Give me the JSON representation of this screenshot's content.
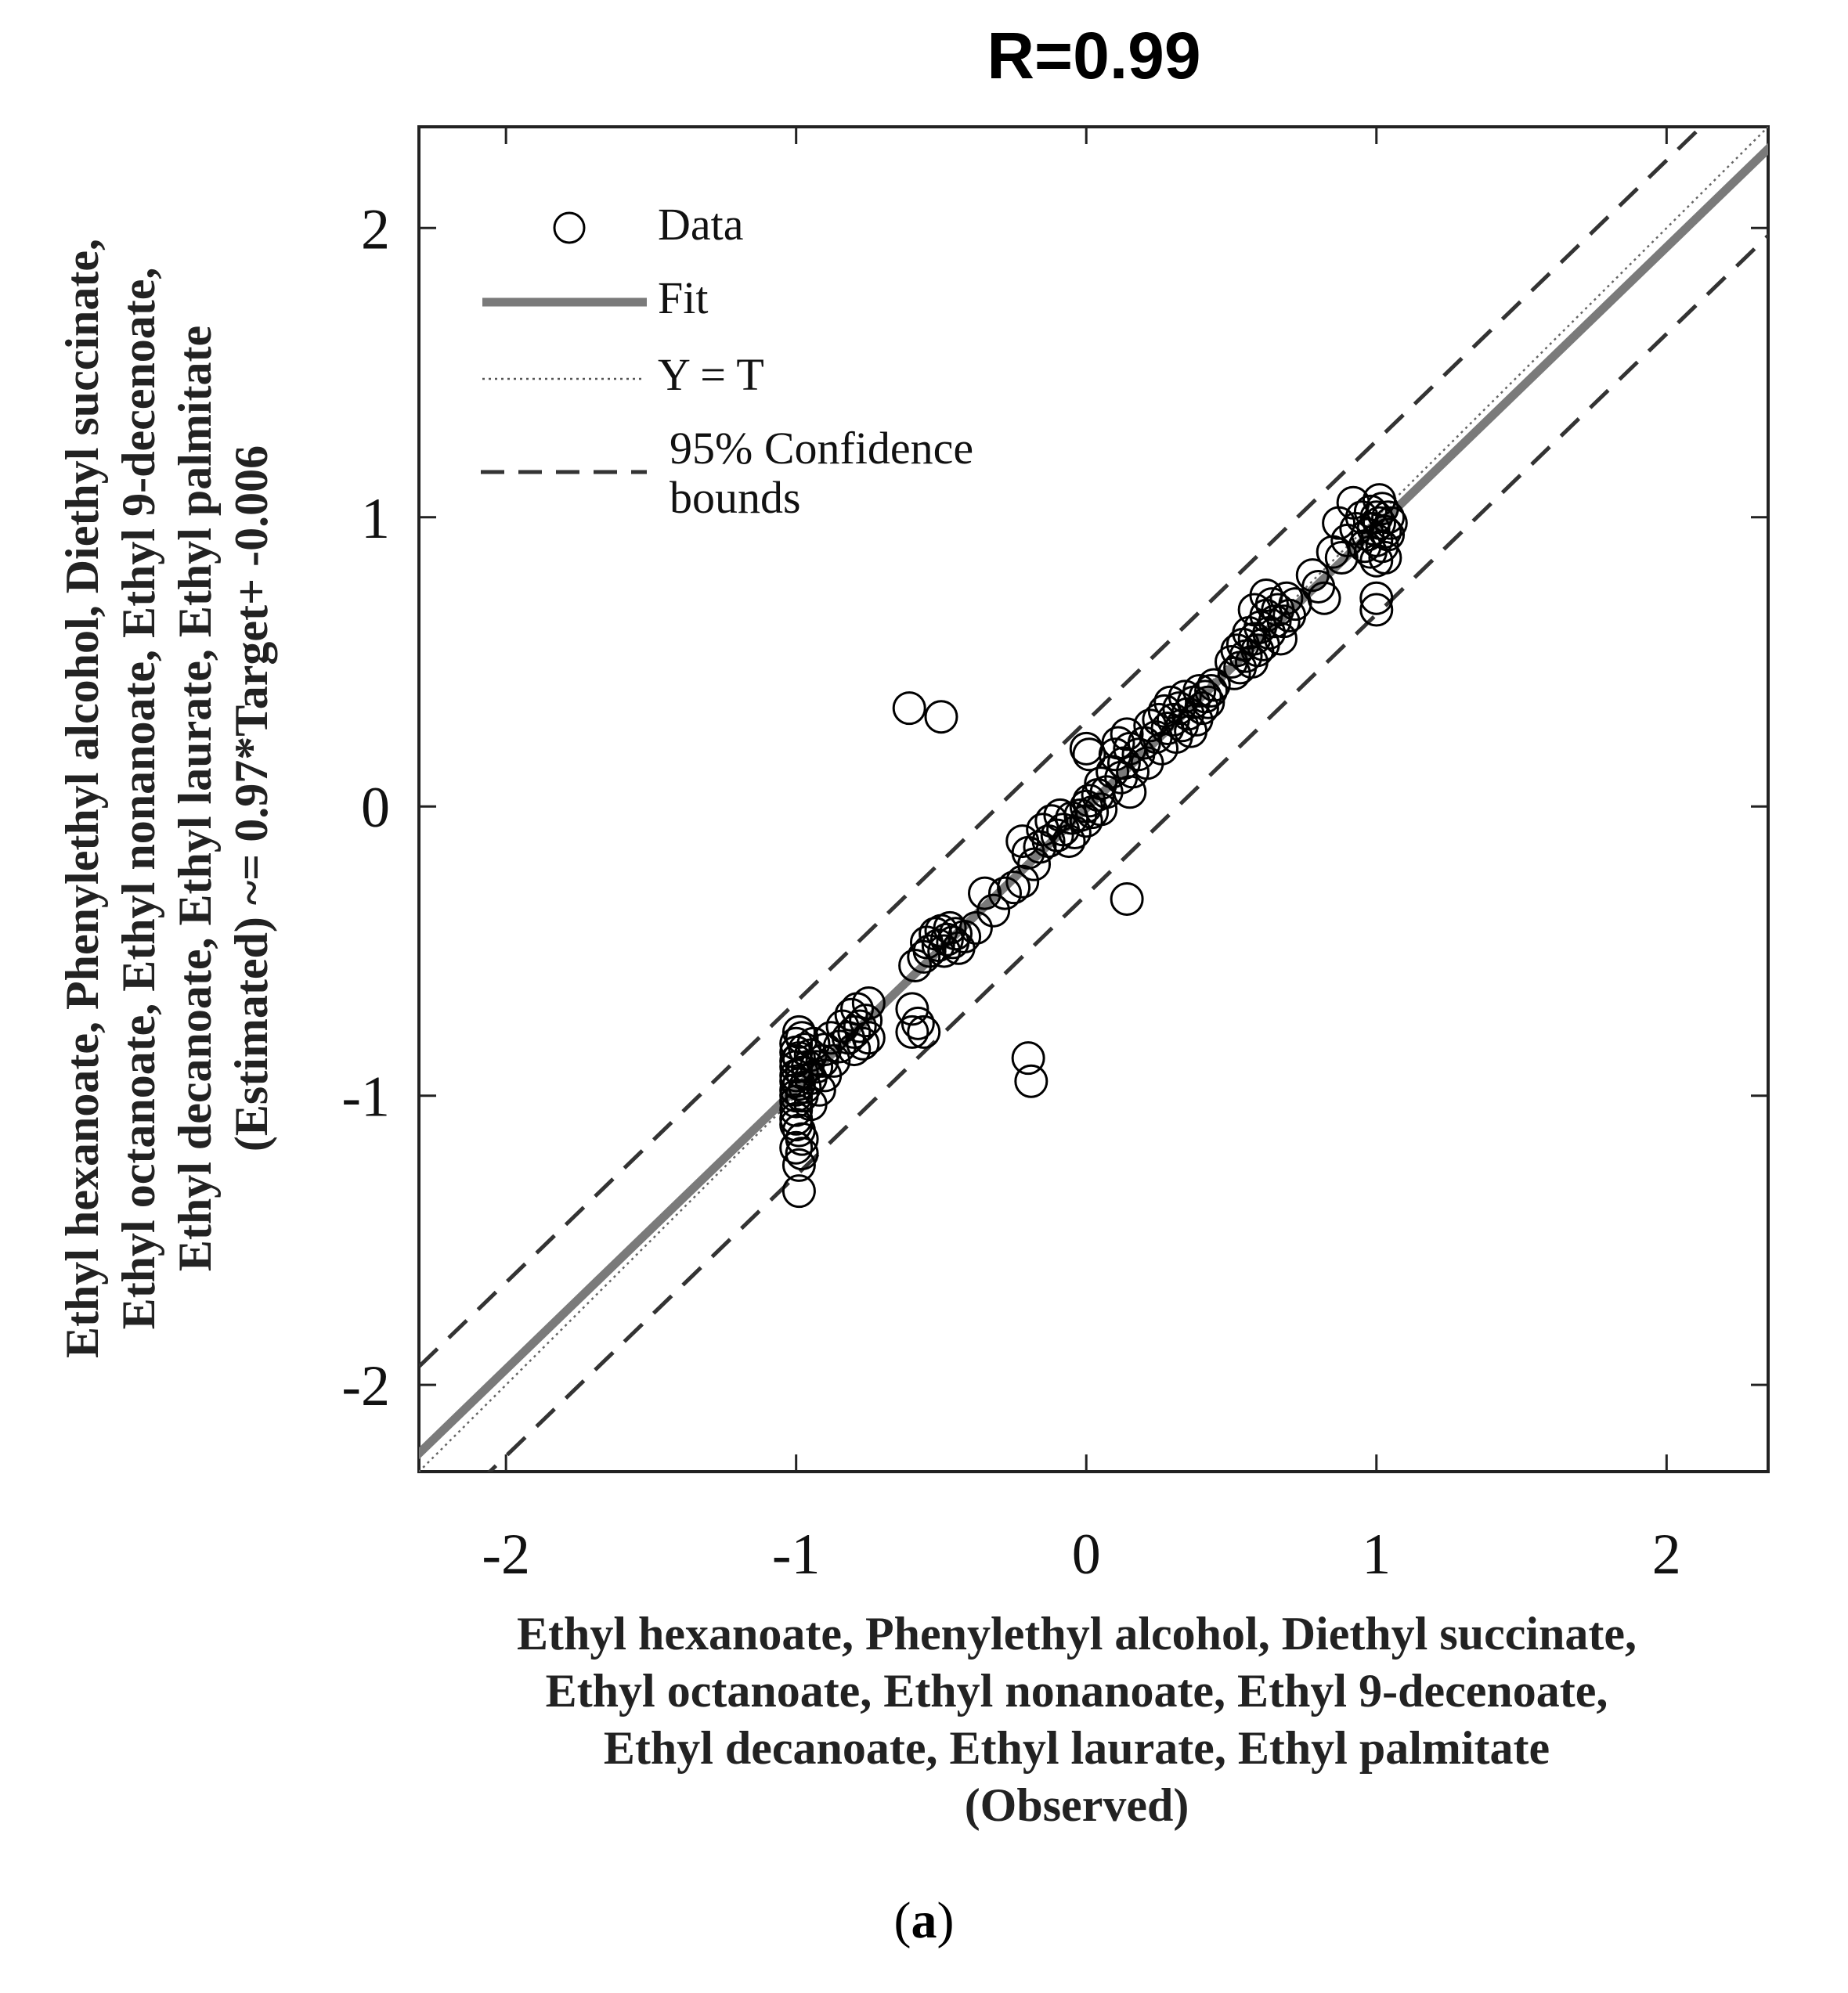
{
  "chart_data": {
    "type": "scatter",
    "title": "R=0.99",
    "xlabel_lines": [
      "Ethyl hexanoate, Phenylethyl alcohol, Diethyl succinate,",
      "Ethyl octanoate, Ethyl nonanoate, Ethyl 9-decenoate,",
      "Ethyl decanoate, Ethyl laurate, Ethyl palmitate",
      "(Observed)"
    ],
    "ylabel_lines": [
      "Ethyl hexanoate, Phenylethyl alcohol, Diethyl succinate,",
      "Ethyl octanoate, Ethyl nonanoate, Ethyl 9-decenoate,",
      "Ethyl decanoate, Ethyl laurate, Ethyl palmitate",
      "(Estimated) ~= 0.97*Target+ -0.006"
    ],
    "xlim": [
      -2.3,
      2.35
    ],
    "ylim": [
      -2.3,
      2.35
    ],
    "xticks": [
      -2,
      -1,
      0,
      1,
      2
    ],
    "yticks": [
      -2,
      -1,
      0,
      1,
      2
    ],
    "xtick_labels": [
      "-2",
      "-1",
      "0",
      "1",
      "2"
    ],
    "ytick_labels": [
      "-2",
      "-1",
      "0",
      "1",
      "2"
    ],
    "fit": {
      "slope": 0.97,
      "intercept": -0.006
    },
    "confidence_offset": 0.3,
    "legend": {
      "placement": "top-left",
      "entries": [
        {
          "label": "Data",
          "style": "circle"
        },
        {
          "label": "Fit",
          "style": "solid"
        },
        {
          "label": "Y = T",
          "style": "dotted"
        },
        {
          "label": "95% Confidence",
          "label2": "bounds",
          "style": "dashed"
        }
      ]
    },
    "points": [
      [
        -1.0,
        -0.82
      ],
      [
        -1.0,
        -0.85
      ],
      [
        -1.0,
        -0.88
      ],
      [
        -1.0,
        -0.9
      ],
      [
        -1.0,
        -0.93
      ],
      [
        -1.0,
        -0.95
      ],
      [
        -1.0,
        -0.98
      ],
      [
        -1.0,
        -1.0
      ],
      [
        -1.0,
        -1.02
      ],
      [
        -1.0,
        -1.05
      ],
      [
        -1.0,
        -1.08
      ],
      [
        -1.0,
        -1.1
      ],
      [
        -0.99,
        -0.78
      ],
      [
        -0.99,
        -0.87
      ],
      [
        -0.99,
        -0.96
      ],
      [
        -0.99,
        -1.12
      ],
      [
        -0.98,
        -0.8
      ],
      [
        -0.98,
        -0.92
      ],
      [
        -0.98,
        -1.0
      ],
      [
        -0.98,
        -1.15
      ],
      [
        -0.97,
        -0.84
      ],
      [
        -0.97,
        -0.97
      ],
      [
        -0.96,
        -0.9
      ],
      [
        -0.95,
        -0.86
      ],
      [
        -0.95,
        -0.94
      ],
      [
        -0.95,
        -1.03
      ],
      [
        -0.94,
        -0.82
      ],
      [
        -0.93,
        -0.9
      ],
      [
        -0.92,
        -0.98
      ],
      [
        -0.91,
        -0.88
      ],
      [
        -0.9,
        -0.84
      ],
      [
        -0.9,
        -0.93
      ],
      [
        -0.88,
        -0.8
      ],
      [
        -0.87,
        -0.88
      ],
      [
        -0.85,
        -0.83
      ],
      [
        -0.84,
        -0.76
      ],
      [
        -0.82,
        -0.8
      ],
      [
        -0.81,
        -0.72
      ],
      [
        -0.8,
        -0.78
      ],
      [
        -0.8,
        -0.84
      ],
      [
        -0.79,
        -0.7
      ],
      [
        -0.78,
        -0.76
      ],
      [
        -0.77,
        -0.82
      ],
      [
        -0.76,
        -0.74
      ],
      [
        -0.75,
        -0.68
      ],
      [
        -0.75,
        -0.8
      ],
      [
        -0.98,
        -1.2
      ],
      [
        -0.99,
        -1.24
      ],
      [
        -1.0,
        -1.18
      ],
      [
        -0.99,
        -1.33
      ],
      [
        -0.6,
        -0.7
      ],
      [
        -0.58,
        -0.75
      ],
      [
        -0.6,
        -0.78
      ],
      [
        -0.59,
        -0.55
      ],
      [
        -0.56,
        -0.52
      ],
      [
        -0.55,
        -0.47
      ],
      [
        -0.54,
        -0.5
      ],
      [
        -0.52,
        -0.44
      ],
      [
        -0.51,
        -0.48
      ],
      [
        -0.5,
        -0.43
      ],
      [
        -0.49,
        -0.5
      ],
      [
        -0.48,
        -0.46
      ],
      [
        -0.47,
        -0.42
      ],
      [
        -0.46,
        -0.47
      ],
      [
        -0.45,
        -0.44
      ],
      [
        -0.44,
        -0.49
      ],
      [
        -0.42,
        -0.45
      ],
      [
        -0.38,
        -0.42
      ],
      [
        -0.35,
        -0.3
      ],
      [
        -0.32,
        -0.36
      ],
      [
        -0.28,
        -0.3
      ],
      [
        -0.25,
        -0.28
      ],
      [
        -0.22,
        -0.26
      ],
      [
        -0.22,
        -0.12
      ],
      [
        -0.2,
        -0.16
      ],
      [
        -0.18,
        -0.2
      ],
      [
        -0.16,
        -0.14
      ],
      [
        -0.15,
        -0.08
      ],
      [
        -0.13,
        -0.12
      ],
      [
        -0.12,
        -0.05
      ],
      [
        -0.1,
        -0.1
      ],
      [
        -0.09,
        -0.03
      ],
      [
        -0.08,
        -0.08
      ],
      [
        -0.06,
        -0.12
      ],
      [
        -0.05,
        -0.04
      ],
      [
        -0.04,
        -0.09
      ],
      [
        -0.02,
        -0.03
      ],
      [
        0.0,
        0.0
      ],
      [
        0.0,
        -0.05
      ],
      [
        0.01,
        0.02
      ],
      [
        0.02,
        -0.02
      ],
      [
        0.04,
        0.04
      ],
      [
        0.05,
        -0.01
      ],
      [
        0.0,
        0.2
      ],
      [
        0.01,
        0.18
      ],
      [
        0.05,
        0.08
      ],
      [
        0.07,
        0.05
      ],
      [
        0.09,
        0.12
      ],
      [
        0.1,
        0.18
      ],
      [
        0.11,
        0.22
      ],
      [
        0.12,
        0.1
      ],
      [
        0.13,
        0.15
      ],
      [
        0.14,
        0.25
      ],
      [
        0.15,
        0.2
      ],
      [
        0.15,
        0.05
      ],
      [
        0.16,
        0.12
      ],
      [
        0.18,
        0.18
      ],
      [
        0.2,
        0.22
      ],
      [
        0.21,
        0.15
      ],
      [
        0.22,
        0.28
      ],
      [
        0.24,
        0.24
      ],
      [
        0.25,
        0.3
      ],
      [
        0.26,
        0.2
      ],
      [
        0.27,
        0.33
      ],
      [
        0.28,
        0.27
      ],
      [
        0.29,
        0.36
      ],
      [
        0.3,
        0.3
      ],
      [
        0.31,
        0.24
      ],
      [
        0.32,
        0.34
      ],
      [
        0.33,
        0.28
      ],
      [
        0.34,
        0.38
      ],
      [
        0.35,
        0.32
      ],
      [
        0.36,
        0.26
      ],
      [
        0.37,
        0.36
      ],
      [
        0.38,
        0.3
      ],
      [
        0.39,
        0.4
      ],
      [
        0.4,
        0.34
      ],
      [
        0.41,
        0.38
      ],
      [
        0.42,
        0.36
      ],
      [
        0.43,
        0.4
      ],
      [
        0.44,
        0.42
      ],
      [
        0.5,
        0.5
      ],
      [
        0.51,
        0.46
      ],
      [
        0.52,
        0.54
      ],
      [
        0.53,
        0.48
      ],
      [
        0.54,
        0.56
      ],
      [
        0.55,
        0.52
      ],
      [
        0.56,
        0.6
      ],
      [
        0.57,
        0.5
      ],
      [
        0.58,
        0.58
      ],
      [
        0.59,
        0.54
      ],
      [
        0.6,
        0.62
      ],
      [
        0.61,
        0.56
      ],
      [
        0.62,
        0.66
      ],
      [
        0.63,
        0.6
      ],
      [
        0.64,
        0.7
      ],
      [
        0.65,
        0.64
      ],
      [
        0.66,
        0.68
      ],
      [
        0.67,
        0.58
      ],
      [
        0.68,
        0.64
      ],
      [
        0.69,
        0.72
      ],
      [
        0.7,
        0.66
      ],
      [
        0.72,
        0.7
      ],
      [
        0.62,
        0.73
      ],
      [
        0.58,
        0.68
      ],
      [
        0.78,
        0.8
      ],
      [
        0.8,
        0.76
      ],
      [
        0.82,
        0.72
      ],
      [
        0.85,
        0.88
      ],
      [
        0.87,
        0.98
      ],
      [
        0.88,
        0.86
      ],
      [
        0.9,
        0.92
      ],
      [
        0.92,
        1.05
      ],
      [
        0.93,
        0.96
      ],
      [
        0.95,
        1.0
      ],
      [
        0.96,
        0.9
      ],
      [
        0.97,
        0.94
      ],
      [
        0.98,
        1.02
      ],
      [
        0.98,
        0.88
      ],
      [
        0.99,
        0.96
      ],
      [
        1.0,
        1.0
      ],
      [
        1.0,
        0.92
      ],
      [
        1.0,
        0.85
      ],
      [
        1.0,
        0.72
      ],
      [
        1.0,
        0.68
      ],
      [
        1.01,
        1.06
      ],
      [
        1.01,
        0.98
      ],
      [
        1.02,
        0.9
      ],
      [
        1.02,
        1.03
      ],
      [
        1.03,
        0.95
      ],
      [
        1.03,
        0.86
      ],
      [
        1.04,
        1.0
      ],
      [
        1.04,
        0.94
      ],
      [
        1.05,
        0.98
      ],
      [
        -0.61,
        0.34
      ],
      [
        -0.5,
        0.31
      ],
      [
        0.14,
        -0.32
      ],
      [
        -0.2,
        -0.87
      ],
      [
        -0.19,
        -0.95
      ],
      [
        -0.56,
        -0.78
      ]
    ]
  },
  "caption": {
    "open": "(",
    "letter": "a",
    "close": ")"
  }
}
